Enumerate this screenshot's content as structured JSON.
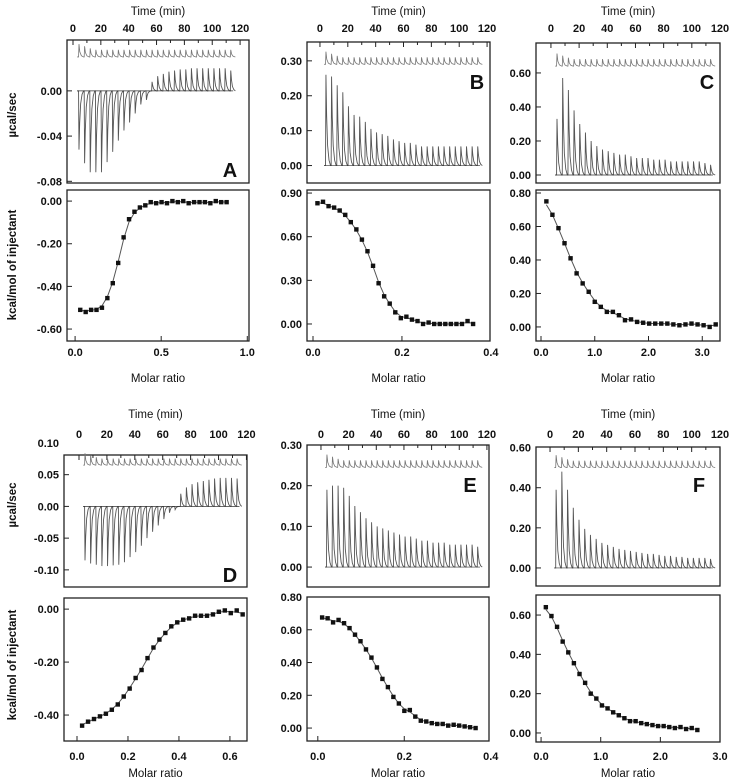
{
  "figure": {
    "time_label": "Time (min)",
    "molar_label": "Molar ratio",
    "ylabel_top": "µcal/sec",
    "ylabel_bottom": "kcal/mol of injectant",
    "time_ticks": [
      "0",
      "20",
      "40",
      "60",
      "80",
      "100",
      "120"
    ]
  },
  "chart_data": [
    {
      "panel": "A",
      "type": "line",
      "raw": {
        "ylabel": "µcal/sec",
        "xlabel": "Time (min)",
        "yticks": [
          "0.00",
          "-0.04",
          "-0.08"
        ],
        "reference_offset": 0.03,
        "peaks": [
          -0.052,
          -0.064,
          -0.072,
          -0.072,
          -0.072,
          -0.063,
          -0.054,
          -0.044,
          -0.035,
          -0.028,
          -0.02,
          -0.012,
          -0.008,
          0.008,
          0.013,
          0.015,
          0.017,
          0.018,
          0.019,
          0.019,
          0.02,
          0.02,
          0.02,
          0.02,
          0.02,
          0.02,
          0.02,
          0.018
        ]
      },
      "isotherm": {
        "type": "scatter",
        "xlabel": "Molar ratio",
        "ylabel": "kcal/mol of injectant",
        "xticks": [
          "0.0",
          "0.5",
          "1.0"
        ],
        "yticks": [
          "0.00",
          "-0.20",
          "-0.40",
          "-0.60"
        ],
        "x_start": 0.03,
        "x_end": 0.88,
        "y": [
          -0.51,
          -0.52,
          -0.51,
          -0.51,
          -0.5,
          -0.455,
          -0.385,
          -0.29,
          -0.17,
          -0.085,
          -0.05,
          -0.03,
          -0.02,
          -0.005,
          -0.01,
          -0.005,
          -0.01,
          0,
          -0.005,
          0,
          -0.01,
          -0.005,
          -0.005,
          -0.005,
          -0.01,
          0,
          -0.005,
          -0.005
        ]
      }
    },
    {
      "panel": "B",
      "type": "line",
      "raw": {
        "ylabel": "µcal/sec",
        "xlabel": "Time (min)",
        "yticks": [
          "0.00",
          "0.10",
          "0.20",
          "0.30"
        ],
        "reference_offset": 0.29,
        "peaks": [
          0.26,
          0.255,
          0.23,
          0.21,
          0.17,
          0.145,
          0.14,
          0.125,
          0.105,
          0.095,
          0.09,
          0.085,
          0.075,
          0.07,
          0.065,
          0.065,
          0.06,
          0.055,
          0.055,
          0.055,
          0.055,
          0.055,
          0.055,
          0.055,
          0.055,
          0.055,
          0.055,
          0.055
        ]
      },
      "isotherm": {
        "type": "scatter",
        "xlabel": "Molar ratio",
        "ylabel": "kcal/mol of injectant",
        "xticks": [
          "0.0",
          "0.2",
          "0.4"
        ],
        "yticks": [
          "0.00",
          "0.30",
          "0.60",
          "0.90"
        ],
        "x_start": 0.01,
        "x_end": 0.36,
        "y": [
          0.83,
          0.84,
          0.81,
          0.8,
          0.78,
          0.75,
          0.7,
          0.65,
          0.58,
          0.5,
          0.4,
          0.28,
          0.19,
          0.14,
          0.08,
          0.04,
          0.05,
          0.03,
          0.02,
          0.0,
          0.01,
          0.0,
          0.0,
          0.0,
          0.0,
          0.0,
          0.0,
          0.02,
          0.0
        ]
      }
    },
    {
      "panel": "C",
      "type": "line",
      "raw": {
        "ylabel": "µcal/sec",
        "xlabel": "Time (min)",
        "yticks": [
          "0.00",
          "0.20",
          "0.40",
          "0.60"
        ],
        "reference_offset": 0.64,
        "peaks": [
          0.33,
          0.57,
          0.5,
          0.38,
          0.3,
          0.25,
          0.2,
          0.17,
          0.15,
          0.14,
          0.13,
          0.12,
          0.12,
          0.11,
          0.1,
          0.1,
          0.1,
          0.09,
          0.09,
          0.09,
          0.08,
          0.08,
          0.08,
          0.08,
          0.08,
          0.08,
          0.07,
          0.06
        ]
      },
      "isotherm": {
        "type": "scatter",
        "xlabel": "Molar ratio",
        "ylabel": "kcal/mol of injectant",
        "xticks": [
          "0.0",
          "1.0",
          "2.0",
          "3.0"
        ],
        "yticks": [
          "0.00",
          "0.20",
          "0.40",
          "0.60",
          "0.80"
        ],
        "x_start": 0.1,
        "x_end": 3.25,
        "y": [
          0.75,
          0.67,
          0.59,
          0.5,
          0.41,
          0.32,
          0.26,
          0.21,
          0.15,
          0.12,
          0.09,
          0.09,
          0.07,
          0.04,
          0.045,
          0.03,
          0.025,
          0.02,
          0.02,
          0.02,
          0.02,
          0.015,
          0.01,
          0.015,
          0.02,
          0.015,
          0.01,
          0.0,
          0.015
        ]
      }
    },
    {
      "panel": "D",
      "type": "line",
      "raw": {
        "ylabel": "µcal/sec",
        "xlabel": "Time (min)",
        "yticks": [
          "-0.10",
          "-0.05",
          "0.00",
          "0.05",
          "0.10"
        ],
        "reference_offset": 0.065,
        "peaks": [
          -0.085,
          -0.09,
          -0.092,
          -0.094,
          -0.094,
          -0.093,
          -0.092,
          -0.088,
          -0.08,
          -0.072,
          -0.062,
          -0.05,
          -0.04,
          -0.03,
          -0.02,
          -0.01,
          -0.005,
          0.02,
          0.03,
          0.035,
          0.038,
          0.04,
          0.042,
          0.044,
          0.045,
          0.045,
          0.045,
          0.044
        ]
      },
      "isotherm": {
        "type": "scatter",
        "xlabel": "Molar ratio",
        "ylabel": "kcal/mol of injectant",
        "xticks": [
          "0.0",
          "0.2",
          "0.4",
          "0.6"
        ],
        "yticks": [
          "0.00",
          "-0.20",
          "-0.40"
        ],
        "x_start": 0.02,
        "x_end": 0.65,
        "y": [
          -0.44,
          -0.425,
          -0.415,
          -0.405,
          -0.395,
          -0.38,
          -0.36,
          -0.33,
          -0.3,
          -0.26,
          -0.23,
          -0.185,
          -0.145,
          -0.115,
          -0.09,
          -0.065,
          -0.05,
          -0.04,
          -0.035,
          -0.025,
          -0.025,
          -0.025,
          -0.02,
          -0.01,
          -0.005,
          -0.015,
          -0.005,
          -0.02
        ]
      }
    },
    {
      "panel": "E",
      "type": "line",
      "raw": {
        "ylabel": "µcal/sec",
        "xlabel": "Time (min)",
        "yticks": [
          "0.00",
          "0.10",
          "0.20",
          "0.30"
        ],
        "reference_offset": 0.245,
        "peaks": [
          0.19,
          0.2,
          0.2,
          0.195,
          0.175,
          0.15,
          0.135,
          0.12,
          0.11,
          0.1,
          0.095,
          0.09,
          0.085,
          0.08,
          0.075,
          0.075,
          0.07,
          0.065,
          0.065,
          0.06,
          0.06,
          0.06,
          0.055,
          0.055,
          0.055,
          0.055,
          0.055,
          0.05
        ]
      },
      "isotherm": {
        "type": "scatter",
        "xlabel": "Molar ratio",
        "ylabel": "kcal/mol of injectant",
        "xticks": [
          "0.0",
          "0.2",
          "0.4"
        ],
        "yticks": [
          "0.00",
          "0.20",
          "0.40",
          "0.60",
          "0.80"
        ],
        "x_start": 0.01,
        "x_end": 0.365,
        "y": [
          0.675,
          0.67,
          0.645,
          0.66,
          0.64,
          0.61,
          0.57,
          0.53,
          0.48,
          0.43,
          0.37,
          0.3,
          0.25,
          0.19,
          0.15,
          0.105,
          0.11,
          0.07,
          0.045,
          0.04,
          0.03,
          0.025,
          0.025,
          0.015,
          0.02,
          0.015,
          0.01,
          0.005,
          0.0
        ]
      }
    },
    {
      "panel": "F",
      "type": "line",
      "raw": {
        "ylabel": "µcal/sec",
        "xlabel": "Time (min)",
        "yticks": [
          "0.00",
          "0.20",
          "0.40",
          "0.60"
        ],
        "reference_offset": 0.5,
        "peaks": [
          0.39,
          0.48,
          0.39,
          0.3,
          0.24,
          0.195,
          0.165,
          0.145,
          0.125,
          0.115,
          0.105,
          0.095,
          0.09,
          0.085,
          0.08,
          0.075,
          0.07,
          0.07,
          0.065,
          0.06,
          0.06,
          0.055,
          0.055,
          0.05,
          0.05,
          0.05,
          0.05,
          0.045
        ]
      },
      "isotherm": {
        "type": "scatter",
        "xlabel": "Molar ratio",
        "ylabel": "kcal/mol of injectant",
        "xticks": [
          "0.0",
          "1.0",
          "2.0",
          "3.0"
        ],
        "yticks": [
          "0.00",
          "0.20",
          "0.40",
          "0.60"
        ],
        "x_start": 0.08,
        "x_end": 2.62,
        "y": [
          0.64,
          0.595,
          0.54,
          0.465,
          0.41,
          0.355,
          0.3,
          0.255,
          0.2,
          0.175,
          0.14,
          0.125,
          0.105,
          0.09,
          0.075,
          0.06,
          0.06,
          0.05,
          0.045,
          0.04,
          0.035,
          0.035,
          0.03,
          0.025,
          0.03,
          0.02,
          0.025,
          0.015
        ]
      }
    }
  ]
}
